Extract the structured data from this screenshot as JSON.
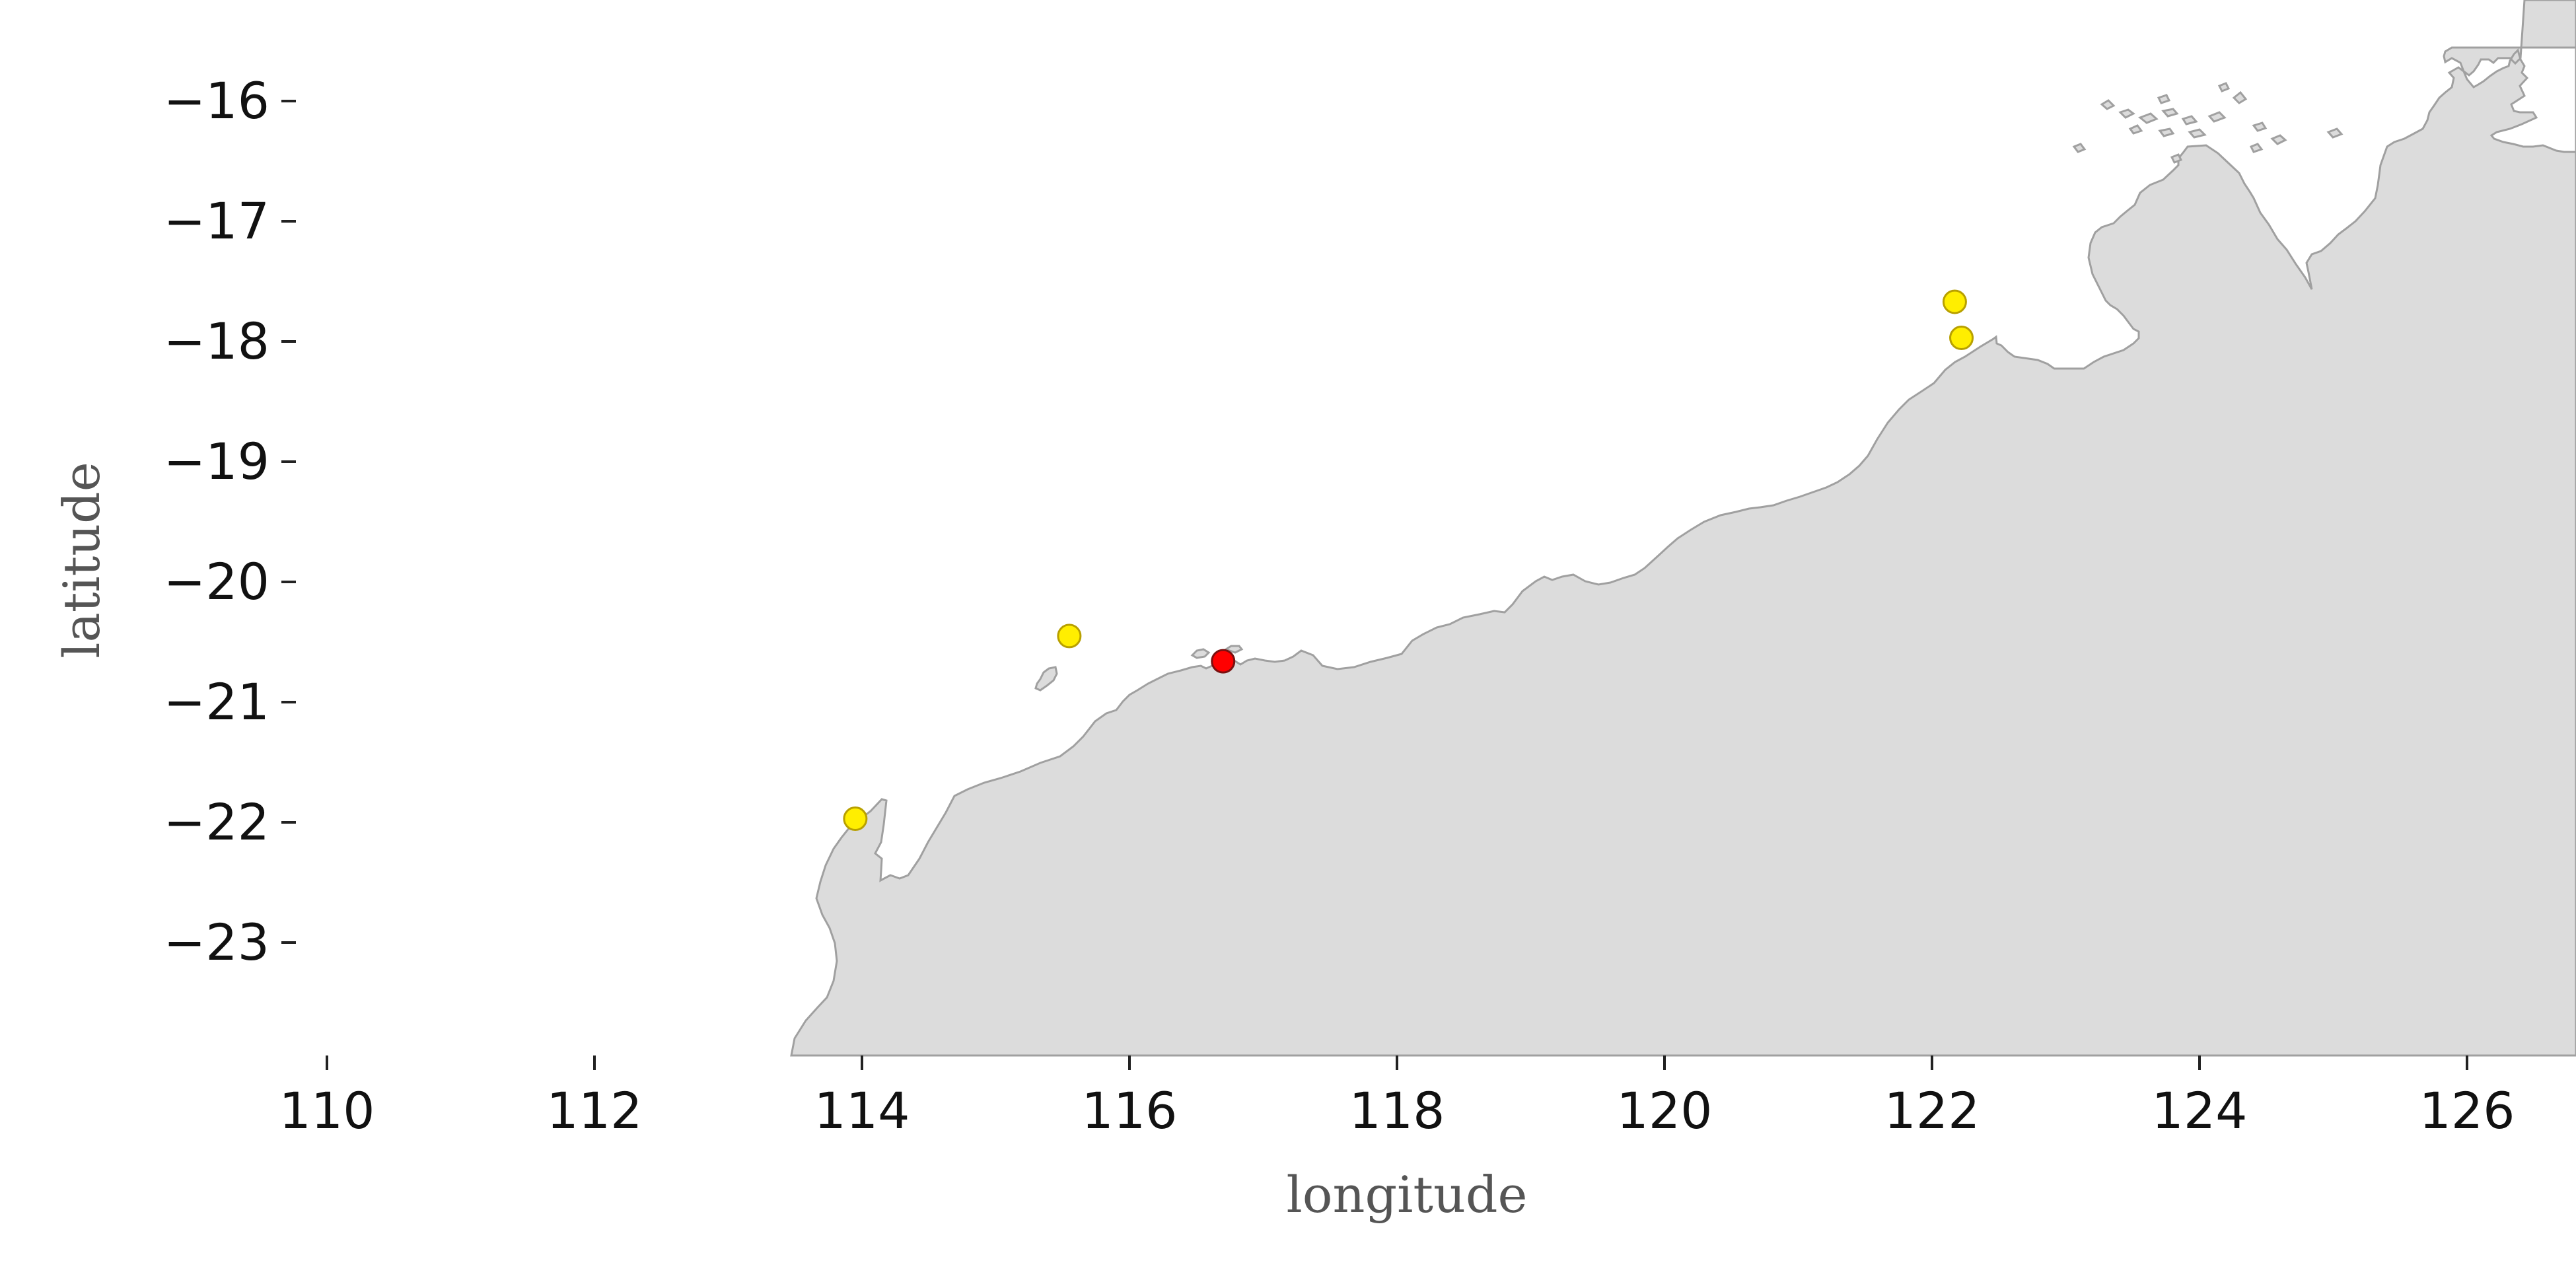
{
  "map": {
    "xlabel": "longitude",
    "ylabel": "latitude",
    "xlim": [
      110,
      126.4
    ],
    "ylim": [
      -23.95,
      -15.65
    ],
    "x_ticks": [
      110,
      112,
      114,
      116,
      118,
      120,
      122,
      124,
      126
    ],
    "y_ticks": [
      -16,
      -17,
      -18,
      -19,
      -20,
      -21,
      -22,
      -23
    ],
    "x_tick_labels": [
      "110",
      "112",
      "114",
      "116",
      "118",
      "120",
      "122",
      "124",
      "126"
    ],
    "y_tick_labels": [
      "−16",
      "−17",
      "−18",
      "−19",
      "−20",
      "−21",
      "−22",
      "−23"
    ],
    "land_color": "#dcdcdc",
    "coastline_color": "#a0a0a0",
    "frame": false,
    "markers": [
      {
        "lon": 113.95,
        "lat": -21.97,
        "color": "#ffee00"
      },
      {
        "lon": 115.55,
        "lat": -20.45,
        "color": "#ffee00"
      },
      {
        "lon": 116.7,
        "lat": -20.66,
        "color": "#ff0000"
      },
      {
        "lon": 122.17,
        "lat": -17.67,
        "color": "#ffee00"
      },
      {
        "lon": 122.22,
        "lat": -17.97,
        "color": "#ffee00"
      }
    ]
  }
}
